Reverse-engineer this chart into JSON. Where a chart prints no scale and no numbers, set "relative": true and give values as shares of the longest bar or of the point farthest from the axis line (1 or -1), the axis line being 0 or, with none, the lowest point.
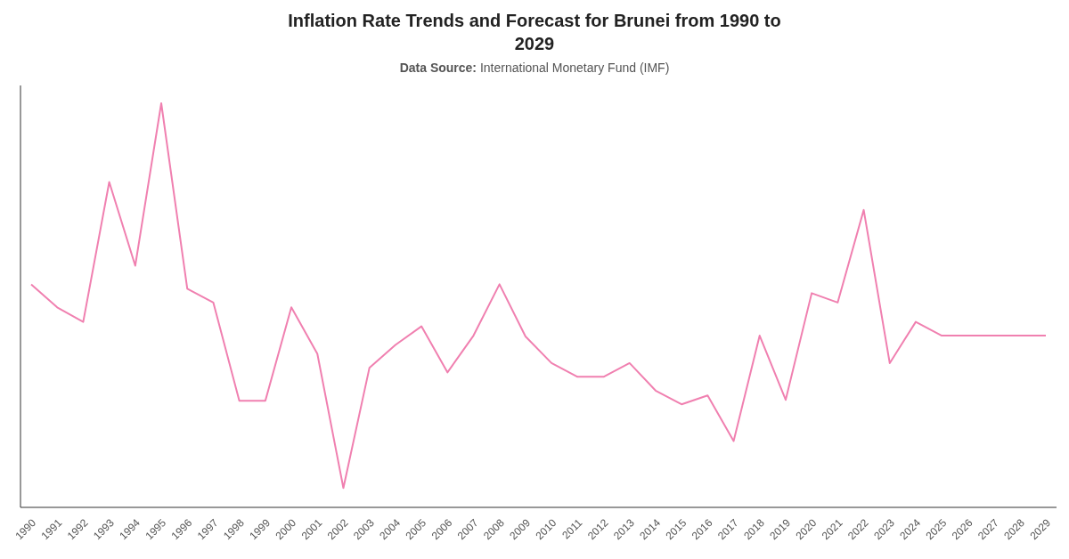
{
  "chart_data": {
    "type": "line",
    "title": "Inflation Rate Trends and Forecast for Brunei from 1990 to 2029",
    "subtitle": "Data Source: International Monetary Fund (IMF)",
    "relative": true,
    "categories": [
      "1990",
      "1991",
      "1992",
      "1993",
      "1994",
      "1995",
      "1996",
      "1997",
      "1998",
      "1999",
      "2000",
      "2001",
      "2002",
      "2003",
      "2004",
      "2005",
      "2006",
      "2007",
      "2008",
      "2009",
      "2010",
      "2011",
      "2012",
      "2013",
      "2014",
      "2015",
      "2016",
      "2017",
      "2018",
      "2019",
      "2020",
      "2021",
      "2022",
      "2023",
      "2024",
      "2025",
      "2026",
      "2027",
      "2028",
      "2029"
    ],
    "series": [
      {
        "color": "#f080b0",
        "values": [
          0.552,
          0.495,
          0.459,
          0.805,
          0.598,
          1,
          0.541,
          0.507,
          0.264,
          0.264,
          0.495,
          0.38,
          0.048,
          0.345,
          0.402,
          0.448,
          0.334,
          0.425,
          0.552,
          0.423,
          0.357,
          0.323,
          0.323,
          0.357,
          0.289,
          0.255,
          0.277,
          0.164,
          0.425,
          0.266,
          0.53,
          0.507,
          0.736,
          0.357,
          0.459,
          0.425,
          0.425,
          0.425,
          0.425,
          0.425
        ]
      }
    ],
    "grid": false,
    "legend": false,
    "marker": "none",
    "line_style": "solid"
  }
}
